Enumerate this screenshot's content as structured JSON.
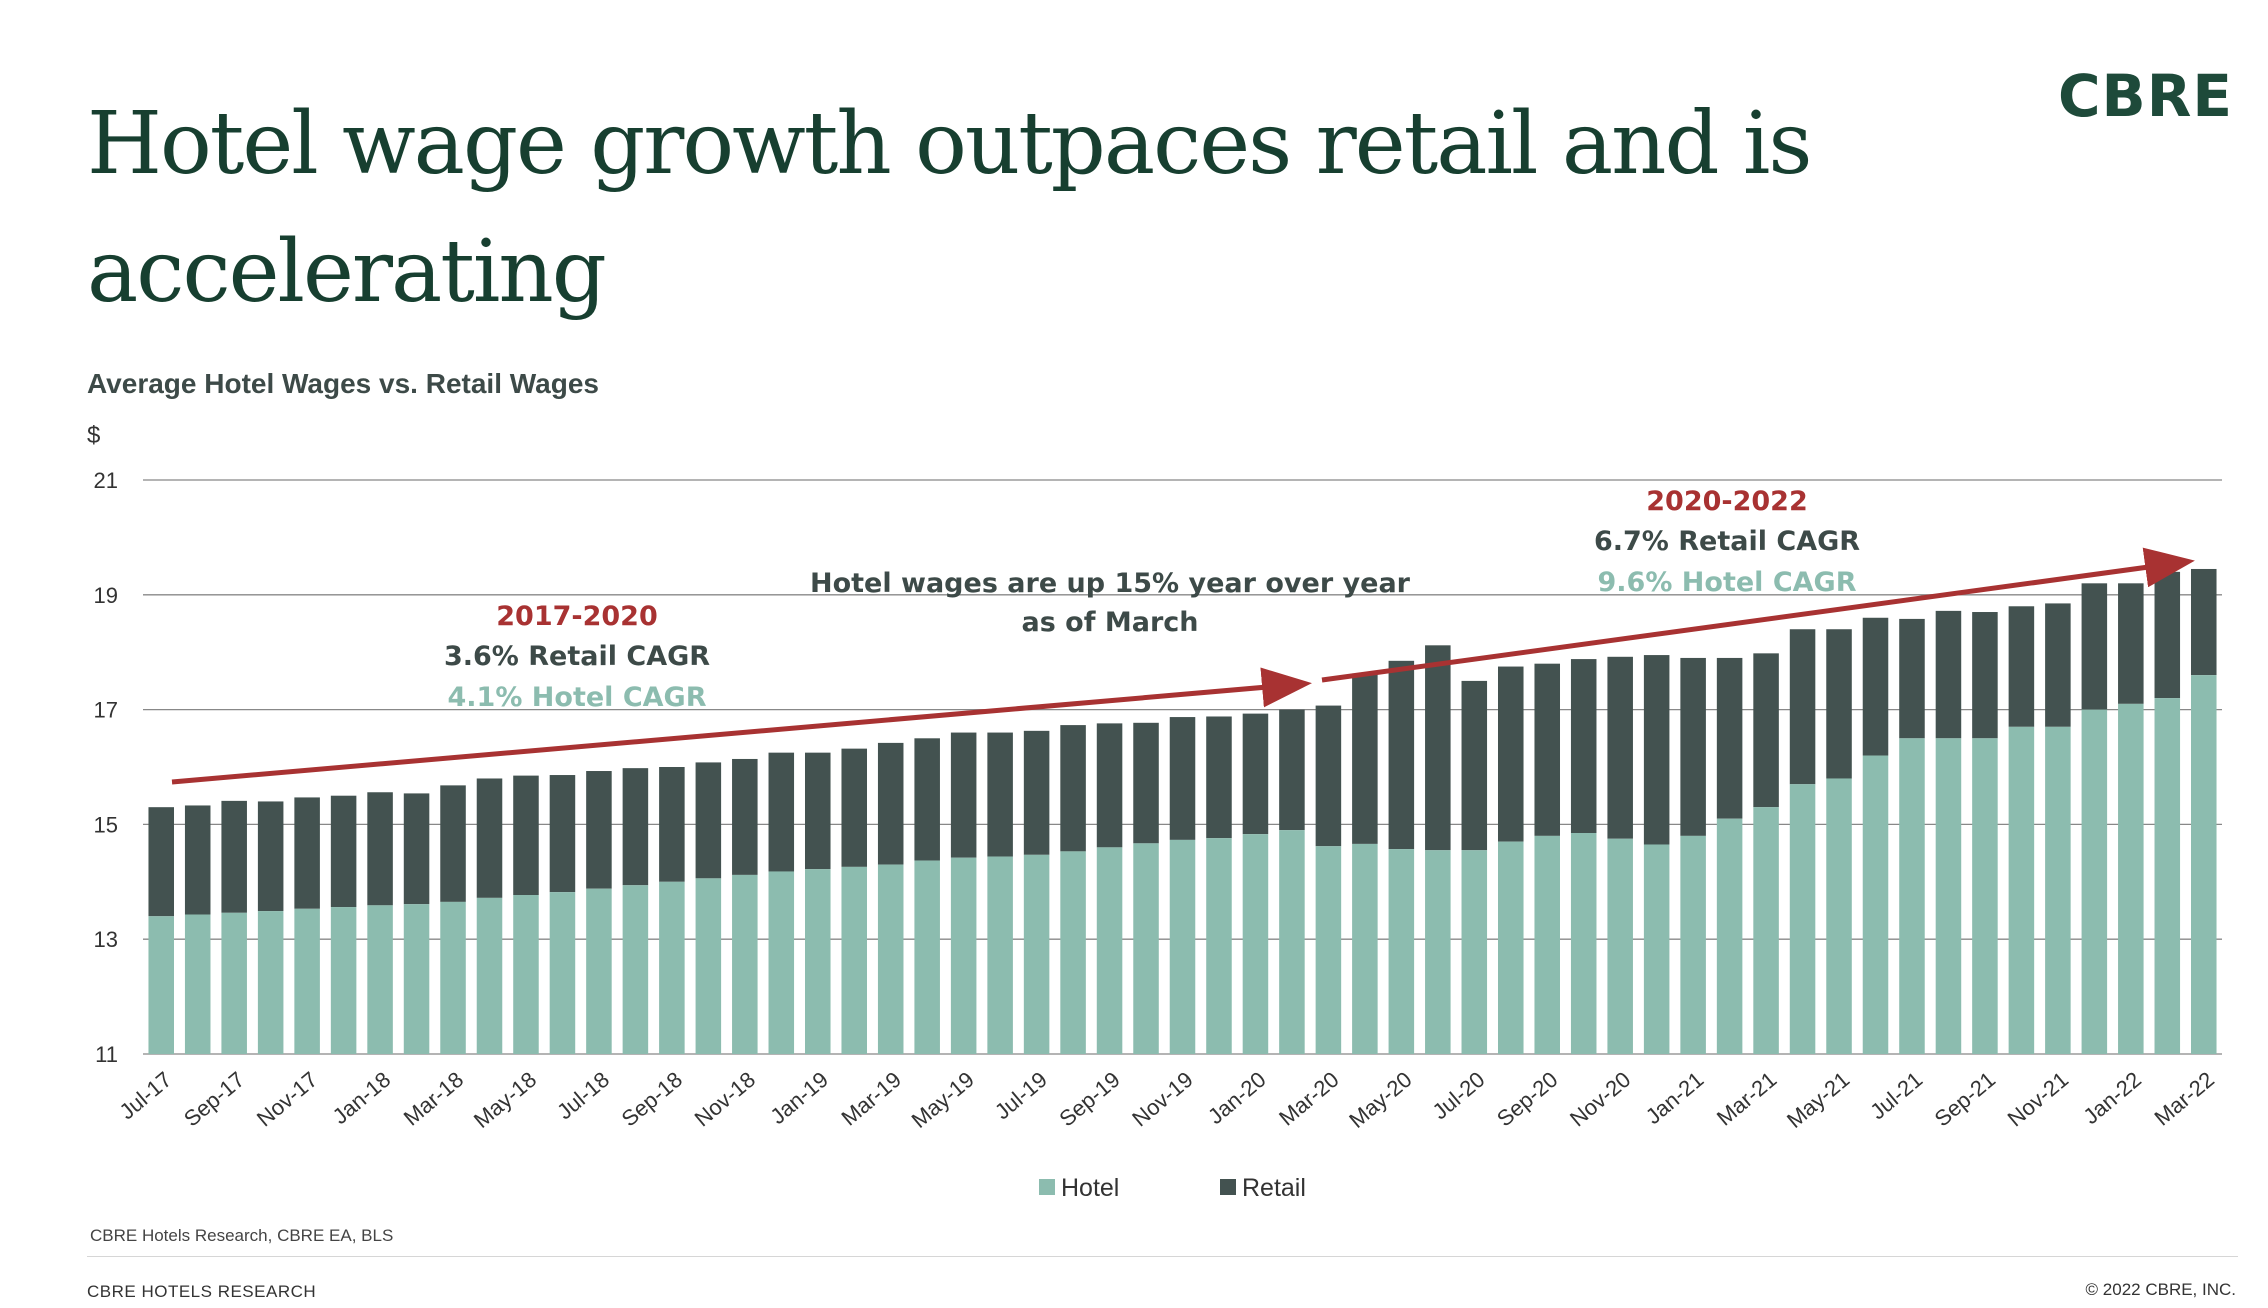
{
  "header": {
    "title": "Hotel wage growth outpaces retail and is accelerating",
    "logo": "CBRE"
  },
  "chart_header": {
    "title": "Average Hotel Wages vs. Retail Wages",
    "unit": "$"
  },
  "annotations": {
    "left_period": "2017-2020",
    "left_retail": "3.6% Retail CAGR",
    "left_hotel": "4.1% Hotel CAGR",
    "middle_line1": "Hotel wages are up 15% year over year",
    "middle_line2": "as of March",
    "right_period": "2020-2022",
    "right_retail": "6.7% Retail CAGR",
    "right_hotel": "9.6% Hotel CAGR"
  },
  "colors": {
    "hotel": "#8cbcaf",
    "retail": "#435250",
    "arrow": "#a83232",
    "period_text": "#a83232",
    "retail_text": "#3d4a48",
    "hotel_text": "#8cbcaf",
    "gridline": "#888888"
  },
  "footer": {
    "source": "CBRE Hotels Research, CBRE EA, BLS",
    "left": "CBRE  HOTELS RESEARCH",
    "right": "© 2022 CBRE, INC."
  },
  "chart_data": {
    "type": "bar",
    "stacked": true,
    "ylim": [
      11,
      21
    ],
    "yticks": [
      11,
      13,
      15,
      17,
      19,
      21
    ],
    "grid": true,
    "legend_position": "bottom-center",
    "categories": [
      "Jul-17",
      "Aug-17",
      "Sep-17",
      "Oct-17",
      "Nov-17",
      "Dec-17",
      "Jan-18",
      "Feb-18",
      "Mar-18",
      "Apr-18",
      "May-18",
      "Jun-18",
      "Jul-18",
      "Aug-18",
      "Sep-18",
      "Oct-18",
      "Nov-18",
      "Dec-18",
      "Jan-19",
      "Feb-19",
      "Mar-19",
      "Apr-19",
      "May-19",
      "Jun-19",
      "Jul-19",
      "Aug-19",
      "Sep-19",
      "Oct-19",
      "Nov-19",
      "Dec-19",
      "Jan-20",
      "Feb-20",
      "Mar-20",
      "Apr-20",
      "May-20",
      "Jun-20",
      "Jul-20",
      "Aug-20",
      "Sep-20",
      "Oct-20",
      "Nov-20",
      "Dec-20",
      "Jan-21",
      "Feb-21",
      "Mar-21",
      "Apr-21",
      "May-21",
      "Jun-21",
      "Jul-21",
      "Aug-21",
      "Sep-21",
      "Oct-21",
      "Nov-21",
      "Dec-21",
      "Jan-22",
      "Feb-22",
      "Mar-22"
    ],
    "xtick_labels": [
      "Jul-17",
      "Sep-17",
      "Nov-17",
      "Jan-18",
      "Mar-18",
      "May-18",
      "Jul-18",
      "Sep-18",
      "Nov-18",
      "Jan-19",
      "Mar-19",
      "May-19",
      "Jul-19",
      "Sep-19",
      "Nov-19",
      "Jan-20",
      "Mar-20",
      "May-20",
      "Jul-20",
      "Sep-20",
      "Nov-20",
      "Jan-21",
      "Mar-21",
      "May-21",
      "Jul-21",
      "Sep-21",
      "Nov-21",
      "Jan-22",
      "Mar-22"
    ],
    "series": [
      {
        "name": "Hotel",
        "values": [
          13.4,
          13.43,
          13.46,
          13.49,
          13.53,
          13.56,
          13.59,
          13.61,
          13.65,
          13.72,
          13.77,
          13.82,
          13.88,
          13.94,
          14.0,
          14.06,
          14.12,
          14.18,
          14.22,
          14.26,
          14.3,
          14.37,
          14.42,
          14.44,
          14.47,
          14.53,
          14.6,
          14.67,
          14.73,
          14.76,
          14.83,
          14.9,
          14.62,
          14.66,
          14.57,
          14.55,
          14.55,
          14.7,
          14.8,
          14.85,
          14.75,
          14.65,
          14.8,
          15.1,
          15.3,
          15.7,
          15.8,
          16.2,
          16.5,
          16.5,
          16.5,
          16.7,
          16.7,
          17.0,
          17.1,
          17.2,
          17.6
        ]
      },
      {
        "name": "Retail",
        "totals": [
          15.3,
          15.33,
          15.41,
          15.4,
          15.47,
          15.5,
          15.56,
          15.54,
          15.68,
          15.8,
          15.85,
          15.86,
          15.93,
          15.98,
          16.0,
          16.08,
          16.14,
          16.25,
          16.25,
          16.32,
          16.42,
          16.5,
          16.6,
          16.6,
          16.63,
          16.73,
          16.76,
          16.77,
          16.87,
          16.88,
          16.93,
          17.0,
          17.07,
          17.63,
          17.85,
          18.12,
          17.5,
          17.75,
          17.8,
          17.88,
          17.92,
          17.95,
          17.9,
          17.9,
          17.98,
          18.4,
          18.4,
          18.6,
          18.58,
          18.72,
          18.7,
          18.8,
          18.85,
          19.2,
          19.2,
          19.4,
          19.45
        ]
      }
    ],
    "xlabel": "",
    "ylabel": "$"
  }
}
